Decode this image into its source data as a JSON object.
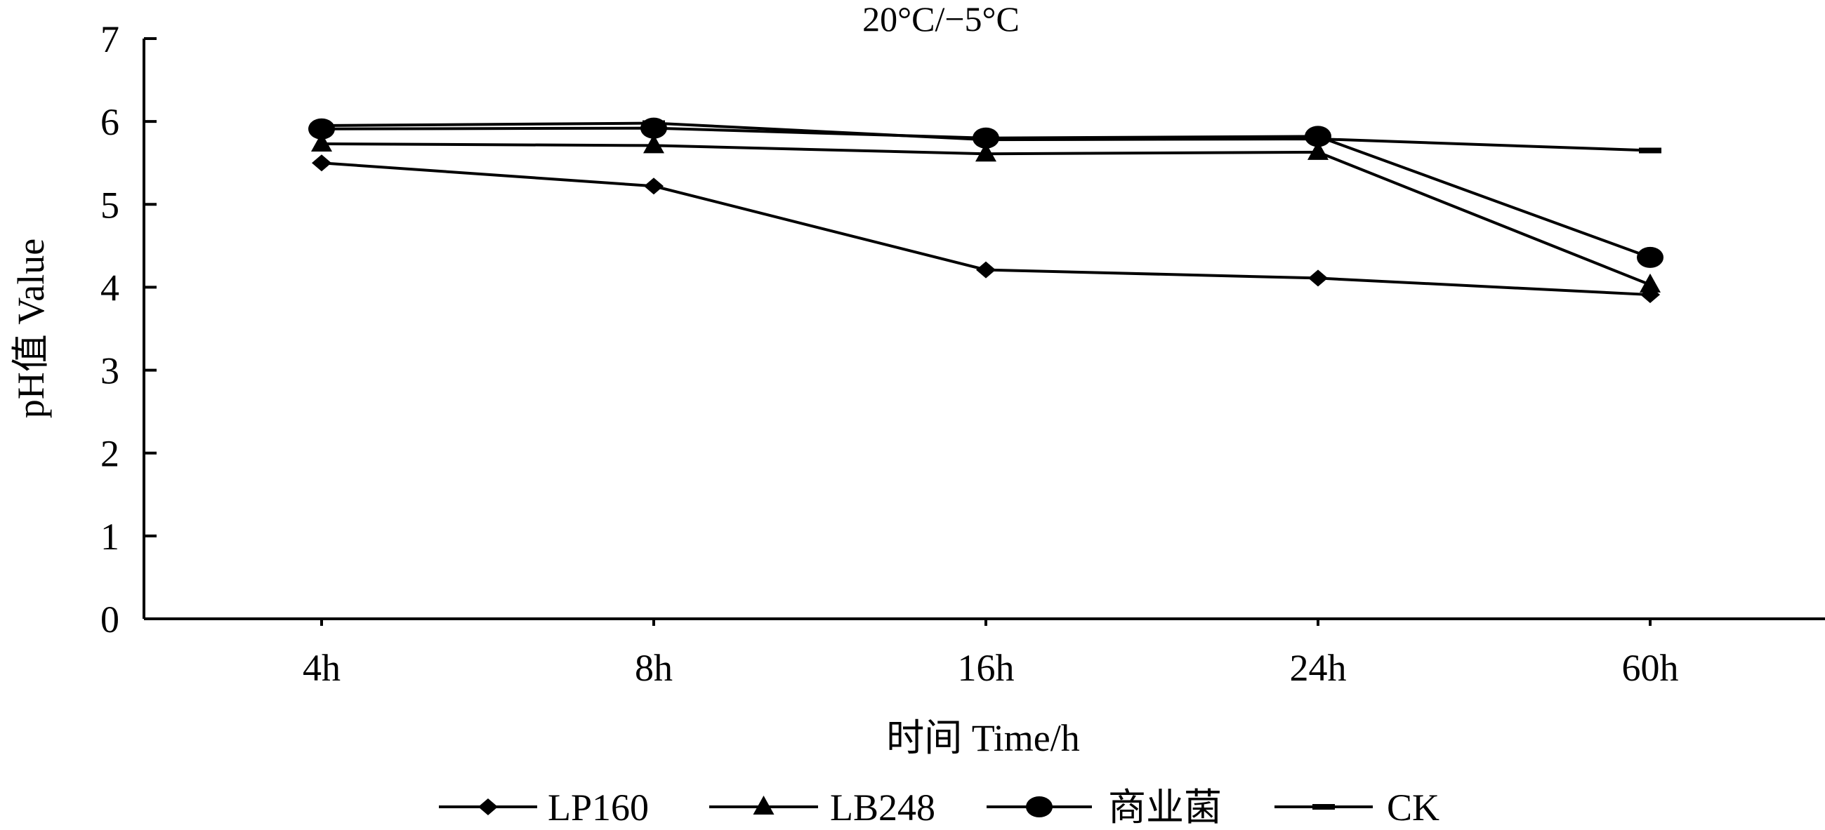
{
  "chart_data": {
    "type": "line",
    "title": "20°C/−5°C",
    "xlabel": "时间 Time/h",
    "ylabel": "pH值 Value",
    "categories": [
      "4h",
      "8h",
      "16h",
      "24h",
      "60h"
    ],
    "yticks": [
      "0",
      "1",
      "2",
      "3",
      "4",
      "5",
      "6",
      "7"
    ],
    "ylim": [
      0,
      7
    ],
    "grid": false,
    "legend_position": "bottom",
    "series": [
      {
        "name": "LP160",
        "marker": "diamond",
        "values": [
          5.5,
          5.22,
          4.21,
          4.11,
          3.91
        ]
      },
      {
        "name": "LB248",
        "marker": "triangle",
        "values": [
          5.73,
          5.71,
          5.61,
          5.63,
          4.03
        ]
      },
      {
        "name": "商业菌",
        "marker": "circle",
        "values": [
          5.91,
          5.92,
          5.8,
          5.82,
          4.36
        ]
      },
      {
        "name": "CK",
        "marker": "dash",
        "values": [
          5.95,
          5.98,
          5.78,
          5.79,
          5.65
        ]
      }
    ]
  }
}
